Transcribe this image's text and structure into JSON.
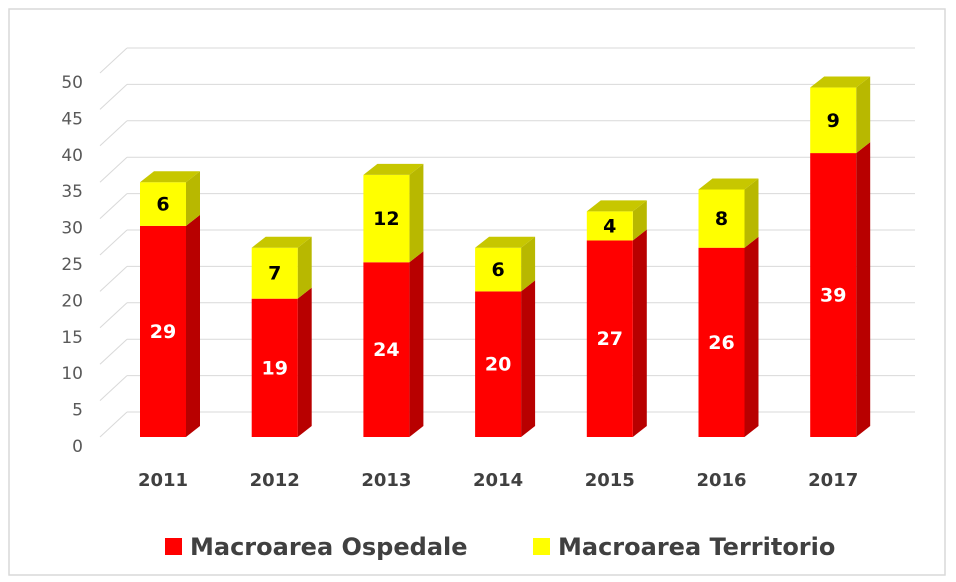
{
  "chart_data": {
    "type": "bar3d_stacked",
    "categories": [
      "2011",
      "2012",
      "2013",
      "2014",
      "2015",
      "2016",
      "2017"
    ],
    "series": [
      {
        "name": "Macroarea Ospedale",
        "color": "#ff0000",
        "values": [
          29,
          19,
          24,
          20,
          27,
          26,
          39
        ]
      },
      {
        "name": "Macroarea Territorio",
        "color": "#ffff00",
        "values": [
          6,
          7,
          12,
          6,
          4,
          8,
          9
        ]
      }
    ],
    "ylim": [
      0,
      50
    ],
    "yticks": [
      0,
      5,
      10,
      15,
      20,
      25,
      30,
      35,
      40,
      45,
      50
    ],
    "grid": true,
    "legend": "bottom"
  }
}
